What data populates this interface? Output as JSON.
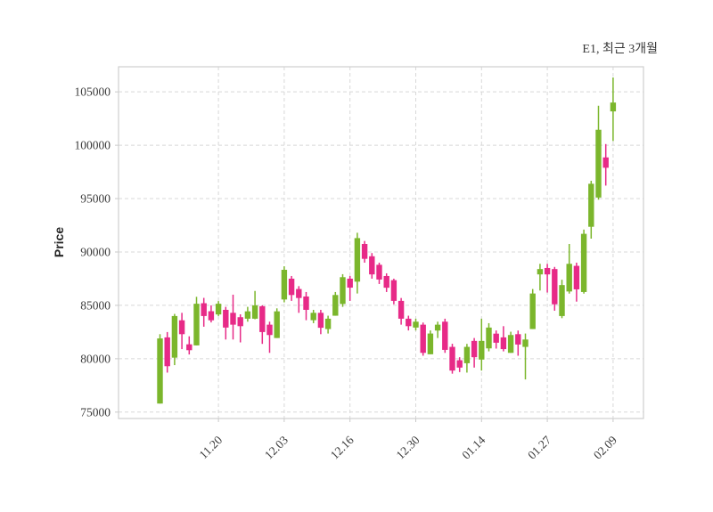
{
  "title": "E1, 최근 3개월",
  "chart_data": {
    "type": "candlestick",
    "title": "E1, 최근 3개월",
    "xlabel": "",
    "ylabel": "Price",
    "grid": true,
    "grid_style": "dashed",
    "legend": "none",
    "y_ticks": [
      75000,
      80000,
      85000,
      90000,
      95000,
      100000,
      105000
    ],
    "ylim": [
      74400,
      107350
    ],
    "x_ticks": [
      {
        "label": "11.20",
        "index": 8
      },
      {
        "label": "12.03",
        "index": 17
      },
      {
        "label": "12.16",
        "index": 26
      },
      {
        "label": "12.30",
        "index": 35
      },
      {
        "label": "01.14",
        "index": 44
      },
      {
        "label": "01.27",
        "index": 53
      },
      {
        "label": "02.09",
        "index": 62
      }
    ],
    "colors": {
      "up": "#7bb62c",
      "down": "#e72a87"
    },
    "ohlc_format": [
      "open",
      "high",
      "low",
      "close"
    ],
    "candles": [
      [
        75800,
        82300,
        75800,
        81900
      ],
      [
        82000,
        82500,
        78700,
        79300
      ],
      [
        80100,
        84200,
        79400,
        84000
      ],
      [
        83600,
        84300,
        80900,
        82300
      ],
      [
        81350,
        82100,
        80400,
        80800
      ],
      [
        81250,
        85800,
        81250,
        85150
      ],
      [
        85200,
        85700,
        83000,
        84000
      ],
      [
        84450,
        85000,
        83400,
        83600
      ],
      [
        84150,
        85400,
        84000,
        85150
      ],
      [
        84580,
        84860,
        81800,
        82920
      ],
      [
        84300,
        86000,
        81800,
        83190
      ],
      [
        83890,
        84160,
        81530,
        83050
      ],
      [
        83750,
        84860,
        83470,
        84440
      ],
      [
        83750,
        86350,
        83700,
        85000
      ],
      [
        84920,
        85000,
        81390,
        82500
      ],
      [
        83190,
        83470,
        80550,
        82220
      ],
      [
        81940,
        84720,
        81940,
        84440
      ],
      [
        85550,
        88660,
        85280,
        88330
      ],
      [
        87500,
        87750,
        85420,
        85970
      ],
      [
        86530,
        86800,
        84300,
        85690
      ],
      [
        85830,
        86250,
        83610,
        84580
      ],
      [
        83610,
        84580,
        83330,
        84300
      ],
      [
        84300,
        84580,
        82300,
        82900
      ],
      [
        82780,
        84030,
        82360,
        83750
      ],
      [
        84030,
        86250,
        84030,
        85970
      ],
      [
        85130,
        87920,
        84860,
        87640
      ],
      [
        87500,
        87750,
        85420,
        86660
      ],
      [
        87220,
        91800,
        86110,
        91300
      ],
      [
        90750,
        91030,
        89000,
        89360
      ],
      [
        89600,
        89900,
        87500,
        87900
      ],
      [
        88800,
        89000,
        87000,
        87420
      ],
      [
        87750,
        88000,
        86250,
        86650
      ],
      [
        87360,
        87500,
        85100,
        85420
      ],
      [
        85420,
        85690,
        83190,
        83750
      ],
      [
        83750,
        84030,
        82650,
        83050
      ],
      [
        82920,
        83750,
        82650,
        83470
      ],
      [
        83190,
        83390,
        80280,
        80550
      ],
      [
        80420,
        82650,
        80420,
        82360
      ],
      [
        82640,
        83470,
        81940,
        83190
      ],
      [
        83470,
        83750,
        80550,
        80830
      ],
      [
        81110,
        81400,
        78600,
        78890
      ],
      [
        79860,
        80140,
        78750,
        79170
      ],
      [
        79580,
        81390,
        78700,
        81110
      ],
      [
        81670,
        81940,
        79170,
        80140
      ],
      [
        79920,
        83750,
        78890,
        81670
      ],
      [
        80970,
        83330,
        80690,
        82920
      ],
      [
        82350,
        82650,
        80950,
        81500
      ],
      [
        82000,
        83050,
        80690,
        80900
      ],
      [
        80550,
        82530,
        80550,
        82220
      ],
      [
        82300,
        82640,
        80280,
        81330
      ],
      [
        81110,
        82360,
        78060,
        81800
      ],
      [
        82780,
        86530,
        82780,
        86110
      ],
      [
        87900,
        88890,
        86390,
        88400
      ],
      [
        88500,
        88890,
        86200,
        87900
      ],
      [
        88400,
        88600,
        84500,
        85100
      ],
      [
        84000,
        87400,
        83800,
        86900
      ],
      [
        86300,
        90750,
        86100,
        88890
      ],
      [
        88700,
        89000,
        85350,
        86500
      ],
      [
        86250,
        92100,
        86100,
        91700
      ],
      [
        92360,
        96670,
        91250,
        96390
      ],
      [
        95100,
        103700,
        94900,
        101450
      ],
      [
        98860,
        100110,
        96220,
        97890
      ],
      [
        103170,
        106350,
        100390,
        104000
      ]
    ]
  }
}
